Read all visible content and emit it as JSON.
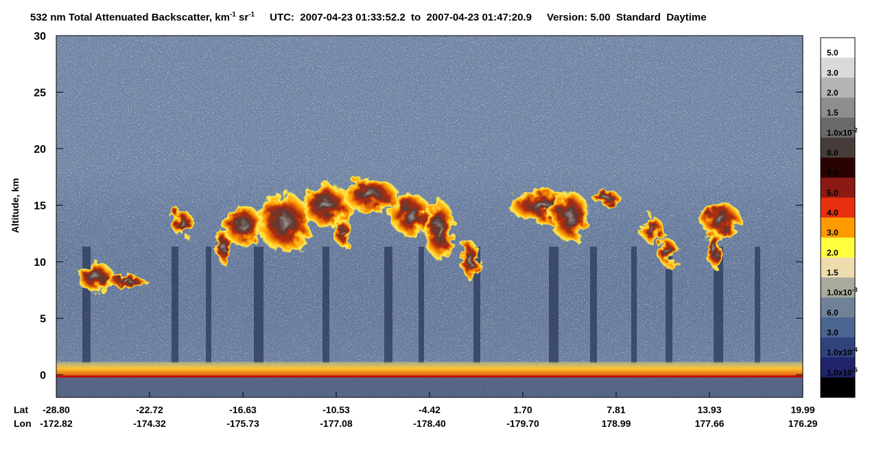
{
  "chart_data": {
    "type": "curtain",
    "title": {
      "text": "532 nm Total Attenuated Backscatter, km",
      "sup1": "-1",
      "unit2": " sr",
      "sup2": "-1",
      "time": "UTC:  2007-04-23 01:33:52.2  to  2007-04-23 01:47:20.9",
      "version": "Version: 5.00  Standard  Daytime"
    },
    "ylabel": "Altitude, km",
    "ylim": [
      -2,
      30
    ],
    "yticks": [
      0,
      5,
      10,
      15,
      20,
      25,
      30
    ],
    "x_rows": [
      {
        "name": "Lat",
        "ticks": [
          {
            "value": -28.8,
            "label": "-28.80"
          },
          {
            "value": -22.72,
            "label": "-22.72"
          },
          {
            "value": -16.63,
            "label": "-16.63"
          },
          {
            "value": -10.53,
            "label": "-10.53"
          },
          {
            "value": -4.42,
            "label": "-4.42"
          },
          {
            "value": 1.7,
            "label": "1.70"
          },
          {
            "value": 7.81,
            "label": "7.81"
          },
          {
            "value": 13.93,
            "label": "13.93"
          },
          {
            "value": 19.99,
            "label": "19.99"
          }
        ]
      },
      {
        "name": "Lon",
        "ticks": [
          {
            "value": -172.82,
            "label": "-172.82"
          },
          {
            "value": -174.32,
            "label": "-174.32"
          },
          {
            "value": -175.73,
            "label": "-175.73"
          },
          {
            "value": -177.08,
            "label": "-177.08"
          },
          {
            "value": -178.4,
            "label": "-178.40"
          },
          {
            "value": -179.7,
            "label": "-179.70"
          },
          {
            "value": 178.99,
            "label": "178.99"
          },
          {
            "value": 177.66,
            "label": "177.66"
          },
          {
            "value": 176.29,
            "label": "176.29"
          }
        ]
      }
    ],
    "colorbar": {
      "colors": [
        "#ffffff",
        "#d9d9d9",
        "#b4b4b4",
        "#8e8e8e",
        "#6a6a6a",
        "#463d3a",
        "#2a0202",
        "#8a1a12",
        "#e6300e",
        "#ff9a00",
        "#ffff40",
        "#eedcae",
        "#a9aa9d",
        "#6f8298",
        "#4b6592",
        "#31437d",
        "#20246a",
        "#000000"
      ],
      "labels": [
        "5.0",
        "3.0",
        "2.0",
        "1.5",
        {
          "base": "1.0x10",
          "exp": "-2"
        },
        "8.0",
        "6.0",
        "5.0",
        "4.0",
        "3.0",
        "2.0",
        "1.5",
        {
          "base": "1.0x10",
          "exp": "-3"
        },
        "6.0",
        "3.0",
        {
          "base": "1.0x10",
          "exp": "-4"
        },
        {
          "base": "1.0x10",
          "exp": "-5"
        }
      ]
    }
  }
}
